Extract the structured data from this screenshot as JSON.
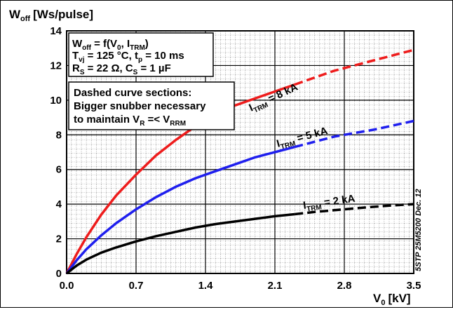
{
  "chart_data": {
    "type": "line",
    "ylabel": "W",
    "ylabel_sub": "off",
    "ylabel_unit": "[Ws/pulse]",
    "xlabel": "V",
    "xlabel_sub": "0",
    "xlabel_unit": "[kV]",
    "xlim": [
      0,
      3.5
    ],
    "ylim": [
      0,
      14
    ],
    "xticks": [
      "0.0",
      "0.7",
      "1.4",
      "2.1",
      "2.8",
      "3.5"
    ],
    "yticks": [
      "0",
      "2",
      "4",
      "6",
      "8",
      "10",
      "12",
      "14"
    ],
    "grid": true,
    "side_note": "5STP 25M5200 Dec. 12",
    "conditions": {
      "line1": "W",
      "line1_sub": "off",
      "line1_tail": " = f(V",
      "line1_sub2": "0",
      "line1_mid": ", I",
      "line1_sub3": "TRM",
      "line1_end": ")",
      "line2": "T",
      "line2_sub": "vj",
      "line2_mid": " = 125 °C, t",
      "line2_sub2": "p",
      "line2_end": " = 10 ms",
      "line3": "R",
      "line3_sub": "S",
      "line3_mid": " = 22 Ω, C",
      "line3_sub2": "S",
      "line3_end": " = 1 µF"
    },
    "dashed_note": {
      "line1": "Dashed curve sections:",
      "line2": "Bigger snubber necessary",
      "line3": "to maintain V",
      "line3_sub": "R",
      "line3_mid": " =< V",
      "line3_sub2": "RRM"
    },
    "series": [
      {
        "name": "I_TRM = 8 kA",
        "label_main": "I",
        "label_sub": "TRM",
        "label_tail": " = 8 kA",
        "color": "#ee1c1c",
        "x": [
          0,
          0.1,
          0.2,
          0.35,
          0.5,
          0.7,
          0.9,
          1.1,
          1.3,
          1.5,
          1.7,
          1.9,
          2.1,
          2.3,
          2.5,
          2.7,
          2.9,
          3.1,
          3.3,
          3.5
        ],
        "y": [
          0,
          1.1,
          2.1,
          3.4,
          4.5,
          5.7,
          6.8,
          7.7,
          8.5,
          9.2,
          9.7,
          10.1,
          10.5,
          10.9,
          11.3,
          11.7,
          12.0,
          12.3,
          12.6,
          12.9
        ],
        "dash_from": 2.3
      },
      {
        "name": "I_TRM = 5 kA",
        "label_main": "I",
        "label_sub": "TRM",
        "label_tail": " = 5 kA",
        "color": "#1f1fee",
        "x": [
          0,
          0.1,
          0.2,
          0.35,
          0.5,
          0.7,
          0.9,
          1.1,
          1.3,
          1.5,
          1.7,
          1.9,
          2.1,
          2.3,
          2.5,
          2.7,
          2.9,
          3.1,
          3.3,
          3.5
        ],
        "y": [
          0,
          0.75,
          1.4,
          2.2,
          2.9,
          3.7,
          4.4,
          5.0,
          5.5,
          5.9,
          6.3,
          6.7,
          7.0,
          7.3,
          7.6,
          7.9,
          8.1,
          8.3,
          8.55,
          8.8
        ],
        "dash_from": 2.3
      },
      {
        "name": "I_TRM = 2 kA",
        "label_main": "I",
        "label_sub": "TRM",
        "label_tail": " = 2 kA",
        "color": "#000000",
        "x": [
          0,
          0.1,
          0.2,
          0.35,
          0.5,
          0.7,
          0.9,
          1.1,
          1.3,
          1.5,
          1.7,
          1.9,
          2.1,
          2.3,
          2.5,
          2.7,
          2.9,
          3.1,
          3.3,
          3.5
        ],
        "y": [
          0,
          0.45,
          0.8,
          1.2,
          1.5,
          1.85,
          2.15,
          2.4,
          2.65,
          2.85,
          3.0,
          3.15,
          3.3,
          3.42,
          3.55,
          3.65,
          3.75,
          3.85,
          3.93,
          4.0
        ],
        "dash_from": 2.3
      }
    ]
  }
}
